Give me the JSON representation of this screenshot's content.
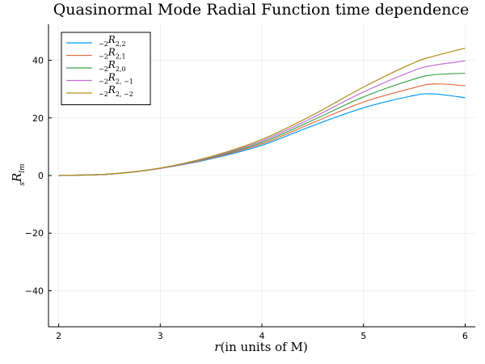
{
  "chart_data": {
    "type": "line",
    "title": "Quasinormal Mode Radial Function time dependence",
    "xlabel": "r(in units of M)",
    "ylabel": "sRlm",
    "xlim": [
      1.9,
      6.1
    ],
    "ylim": [
      -52.5,
      52.5
    ],
    "xticks": [
      2,
      3,
      4,
      5,
      6
    ],
    "yticks": [
      -40,
      -20,
      0,
      20,
      40
    ],
    "xtick_labels": [
      "2",
      "3",
      "4",
      "5",
      "6"
    ],
    "ytick_labels": [
      "−40",
      "−20",
      "0",
      "20",
      "40"
    ],
    "grid": true,
    "legend_position": "top-left",
    "x": [
      2.0,
      2.5,
      3.0,
      3.5,
      4.0,
      4.5,
      5.0,
      5.5,
      5.7,
      6.0
    ],
    "series": [
      {
        "name": "−2R2,2",
        "label_sub_pre": "−2",
        "label_main": "R",
        "label_sub_post": "2,2",
        "color": "#009af9",
        "values": [
          0,
          0.5,
          2.5,
          5.8,
          10.5,
          17.3,
          23.5,
          27.8,
          28.3,
          27.0
        ]
      },
      {
        "name": "−2R2,1",
        "label_sub_pre": "−2",
        "label_main": "R",
        "label_sub_post": "2,1",
        "color": "#e26f46",
        "values": [
          0,
          0.5,
          2.5,
          6.0,
          11.0,
          18.3,
          25.5,
          30.5,
          31.8,
          31.2
        ]
      },
      {
        "name": "−2R2,0",
        "label_sub_pre": "−2",
        "label_main": "R",
        "label_sub_post": "2,0",
        "color": "#3da44d",
        "values": [
          0,
          0.5,
          2.5,
          6.2,
          11.5,
          19.2,
          27.3,
          33.5,
          35.0,
          35.5
        ]
      },
      {
        "name": "−2R2,−1",
        "label_sub_pre": "−2",
        "label_main": "R",
        "label_sub_post": "2, −1",
        "color": "#c271d2",
        "values": [
          0,
          0.5,
          2.5,
          6.4,
          12.0,
          20.1,
          29.0,
          36.5,
          38.3,
          39.8
        ]
      },
      {
        "name": "−2R2,−2",
        "label_sub_pre": "−2",
        "label_main": "R",
        "label_sub_post": "2, −2",
        "color": "#ac8d18",
        "values": [
          0,
          0.5,
          2.6,
          6.6,
          12.5,
          21.0,
          30.7,
          39.2,
          41.5,
          44.2
        ]
      }
    ]
  }
}
